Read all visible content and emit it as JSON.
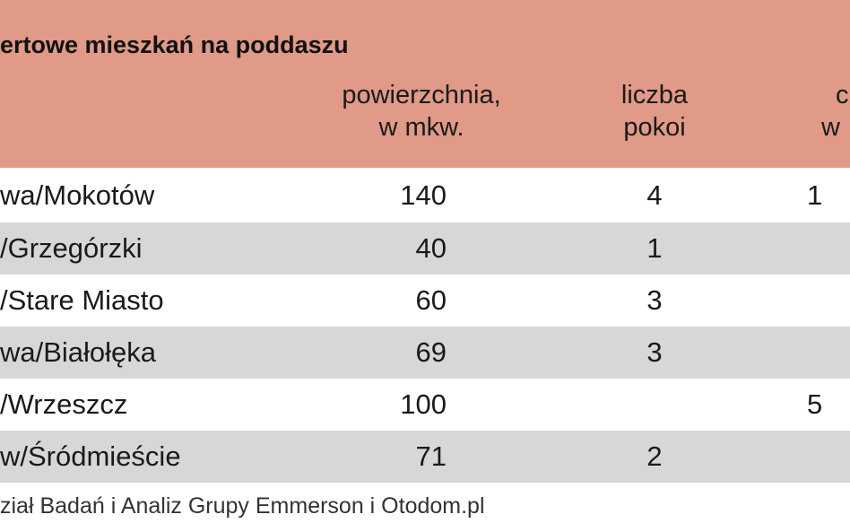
{
  "table": {
    "title": "ertowe mieszkań na poddaszu",
    "headers": {
      "area": [
        "powierzchnia,",
        "w mkw."
      ],
      "rooms": [
        "liczba",
        "pokoi"
      ],
      "price": [
        "c",
        "w"
      ]
    },
    "rows": [
      {
        "location": "wa/Mokotów",
        "area": "140",
        "rooms": "4",
        "price": "1"
      },
      {
        "location": "/Grzegórzki",
        "area": "40",
        "rooms": "1",
        "price": ""
      },
      {
        "location": "/Stare Miasto",
        "area": "60",
        "rooms": "3",
        "price": ""
      },
      {
        "location": "wa/Białołęka",
        "area": "69",
        "rooms": "3",
        "price": ""
      },
      {
        "location": "/Wrzeszcz",
        "area": "100",
        "rooms": "",
        "price": "5"
      },
      {
        "location": "w/Śródmieście",
        "area": "71",
        "rooms": "2",
        "price": ""
      }
    ],
    "source": "ział Badań i Analiz Grupy Emmerson i Otodom.pl"
  },
  "chart_data": {
    "type": "table",
    "title": "ertowe mieszkań na poddaszu",
    "columns": [
      "",
      "powierzchnia, w mkw.",
      "liczba pokoi",
      "c w"
    ],
    "rows": [
      [
        "wa/Mokotów",
        140,
        4,
        "1"
      ],
      [
        "/Grzegórzki",
        40,
        1,
        ""
      ],
      [
        "/Stare Miasto",
        60,
        3,
        ""
      ],
      [
        "wa/Białołęka",
        69,
        3,
        ""
      ],
      [
        "/Wrzeszcz",
        100,
        "",
        "5"
      ],
      [
        "w/Śródmieście",
        71,
        2,
        ""
      ]
    ]
  },
  "colors": {
    "header_band": "#e09a87",
    "alt_row": "#d7d7d7"
  }
}
